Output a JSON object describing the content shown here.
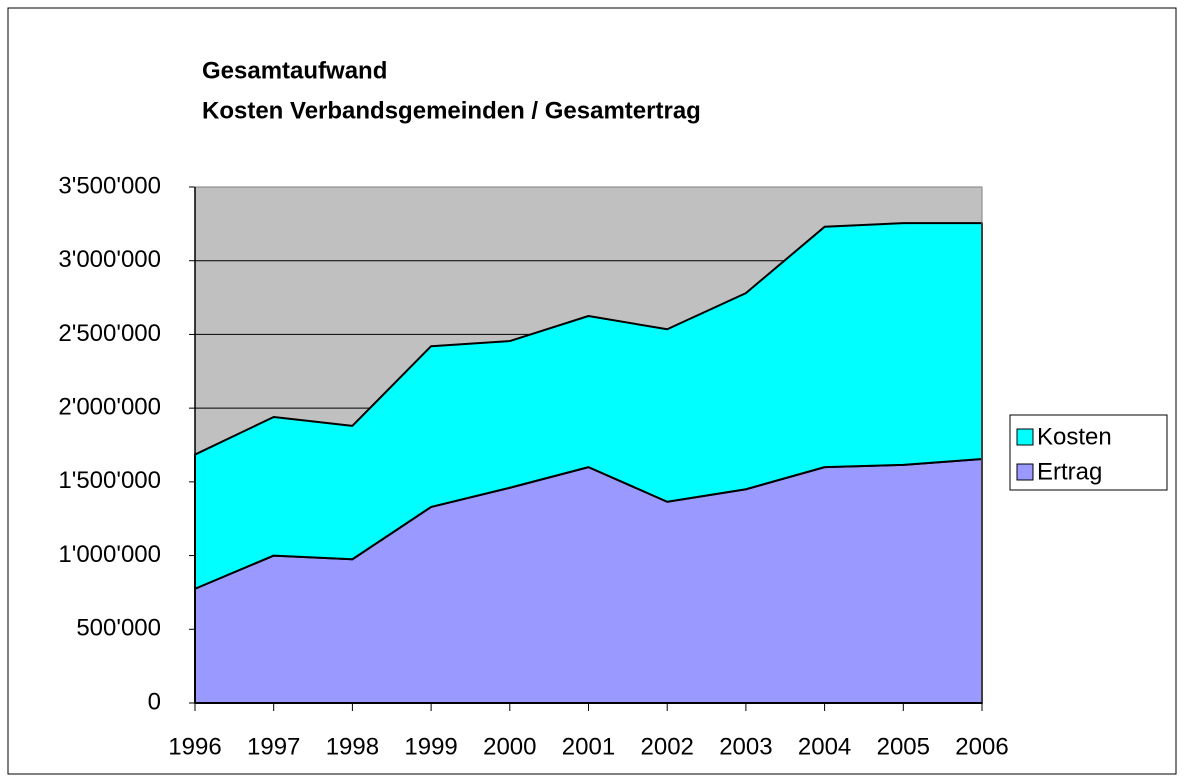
{
  "chart_data": {
    "type": "area",
    "stacked": true,
    "title": [
      "Gesamtaufwand",
      "Kosten Verbandsgemeinden / Gesamtertrag"
    ],
    "categories": [
      "1996",
      "1997",
      "1998",
      "1999",
      "2000",
      "2001",
      "2002",
      "2003",
      "2004",
      "2005",
      "2006"
    ],
    "series": [
      {
        "name": "Ertrag",
        "color": "#9999ff",
        "values": [
          775000,
          1000000,
          975000,
          1330000,
          1460000,
          1600000,
          1365000,
          1450000,
          1600000,
          1615000,
          1655000
        ]
      },
      {
        "name": "Kosten",
        "color": "#00ffff",
        "values": [
          910000,
          940000,
          905000,
          1090000,
          995000,
          1025000,
          1170000,
          1330000,
          1630000,
          1640000,
          1600000
        ]
      }
    ],
    "ylim": [
      0,
      3500000
    ],
    "yticks": [
      0,
      {
        "value": 500000,
        "label": "500'000"
      },
      {
        "value": 1000000,
        "label": "1'000'000"
      },
      {
        "value": 1500000,
        "label": "1'500'000"
      },
      {
        "value": 2000000,
        "label": "2'000'000"
      },
      {
        "value": 2500000,
        "label": "2'500'000"
      },
      {
        "value": 3000000,
        "label": "3'000'000"
      },
      {
        "value": 3500000,
        "label": "3'500'000"
      }
    ],
    "grid": true,
    "plot_background": "#c0c0c0",
    "legend": "right"
  }
}
